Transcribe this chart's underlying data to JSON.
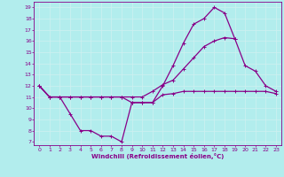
{
  "xlabel": "Windchill (Refroidissement éolien,°C)",
  "xlim": [
    -0.5,
    23.5
  ],
  "ylim": [
    6.7,
    19.5
  ],
  "xticks": [
    0,
    1,
    2,
    3,
    4,
    5,
    6,
    7,
    8,
    9,
    10,
    11,
    12,
    13,
    14,
    15,
    16,
    17,
    18,
    19,
    20,
    21,
    22,
    23
  ],
  "yticks": [
    7,
    8,
    9,
    10,
    11,
    12,
    13,
    14,
    15,
    16,
    17,
    18,
    19
  ],
  "background_color": "#b2eded",
  "grid_color": "#d0f0f0",
  "line_color": "#880088",
  "line1_x": [
    0,
    1,
    2,
    3,
    4,
    5,
    6,
    7,
    8,
    9,
    10,
    11,
    12,
    13,
    14,
    15,
    16,
    17,
    18,
    19
  ],
  "line1_y": [
    12,
    11,
    11,
    9.5,
    8.0,
    8.0,
    7.5,
    7.5,
    7.0,
    10.5,
    10.5,
    10.5,
    12.0,
    13.8,
    15.8,
    17.5,
    18.0,
    19.0,
    18.5,
    16.2
  ],
  "line2_x": [
    0,
    1,
    2,
    3,
    4,
    5,
    6,
    7,
    8,
    9,
    10,
    11,
    12,
    13,
    14,
    15,
    16,
    17,
    18,
    19,
    20,
    21,
    22,
    23
  ],
  "line2_y": [
    12,
    11,
    11,
    11,
    11,
    11,
    11,
    11,
    11,
    11,
    11,
    11.5,
    12.1,
    12.5,
    13.5,
    14.5,
    15.5,
    16.0,
    16.3,
    16.2,
    13.8,
    13.3,
    12.0,
    11.5
  ],
  "line3_x": [
    0,
    1,
    2,
    3,
    4,
    5,
    6,
    7,
    8,
    9,
    10,
    11,
    12,
    13,
    14,
    15,
    16,
    17,
    18,
    19,
    20,
    21,
    22,
    23
  ],
  "line3_y": [
    12,
    11,
    11,
    11,
    11,
    11,
    11,
    11,
    11,
    10.5,
    10.5,
    10.5,
    11.2,
    11.3,
    11.5,
    11.5,
    11.5,
    11.5,
    11.5,
    11.5,
    11.5,
    11.5,
    11.5,
    11.3
  ]
}
